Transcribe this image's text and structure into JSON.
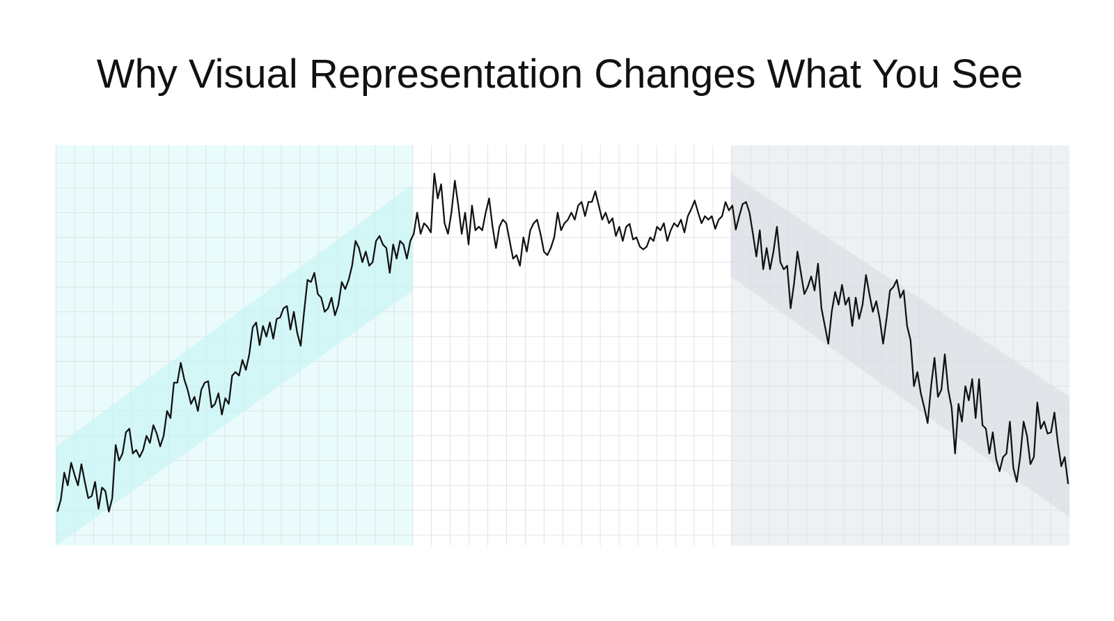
{
  "chart_data": {
    "type": "line",
    "title": "Why Visual Representation Changes What You See",
    "color": "#111111",
    "ylim": [
      0,
      565
    ],
    "values": [
      48,
      65,
      103,
      85,
      117,
      100,
      85,
      115,
      90,
      67,
      70,
      90,
      52,
      82,
      77,
      48,
      67,
      142,
      120,
      130,
      160,
      165,
      130,
      135,
      125,
      135,
      155,
      145,
      170,
      158,
      140,
      155,
      190,
      180,
      230,
      230,
      258,
      235,
      220,
      200,
      210,
      190,
      220,
      230,
      232,
      195,
      200,
      215,
      185,
      208,
      200,
      240,
      245,
      240,
      262,
      248,
      270,
      308,
      315,
      283,
      310,
      295,
      315,
      292,
      320,
      322,
      335,
      338,
      305,
      330,
      300,
      282,
      330,
      375,
      372,
      385,
      355,
      350,
      330,
      335,
      350,
      325,
      340,
      372,
      362,
      375,
      395,
      430,
      420,
      400,
      415,
      395,
      400,
      430,
      437,
      425,
      420,
      385,
      425,
      405,
      430,
      425,
      405,
      430,
      440,
      470,
      440,
      455,
      450,
      442,
      525,
      490,
      510,
      455,
      440,
      470,
      515,
      480,
      440,
      470,
      425,
      480,
      445,
      450,
      445,
      470,
      490,
      450,
      420,
      450,
      460,
      455,
      430,
      405,
      410,
      395,
      435,
      415,
      445,
      455,
      460,
      440,
      415,
      410,
      420,
      435,
      470,
      445,
      455,
      460,
      470,
      460,
      480,
      485,
      465,
      485,
      485,
      500,
      480,
      460,
      470,
      455,
      462,
      437,
      450,
      430,
      450,
      454,
      432,
      435,
      422,
      418,
      422,
      435,
      430,
      450,
      445,
      455,
      430,
      445,
      455,
      450,
      460,
      442,
      465,
      475,
      487,
      470,
      455,
      465,
      460,
      465,
      447,
      460,
      465,
      485,
      473,
      480,
      446,
      465,
      482,
      485,
      470,
      440,
      408,
      445,
      390,
      420,
      390,
      415,
      450,
      400,
      390,
      395,
      335,
      370,
      415,
      385,
      355,
      365,
      380,
      360,
      398,
      335,
      310,
      285,
      330,
      358,
      340,
      368,
      340,
      350,
      310,
      350,
      320,
      340,
      382,
      355,
      330,
      345,
      320,
      285,
      320,
      360,
      365,
      375,
      350,
      360,
      310,
      290,
      225,
      245,
      215,
      195,
      173,
      225,
      265,
      210,
      220,
      270,
      220,
      195,
      130,
      200,
      175,
      225,
      205,
      235,
      180,
      235,
      170,
      165,
      130,
      160,
      122,
      105,
      125,
      130,
      175,
      110,
      90,
      125,
      175,
      155,
      115,
      125,
      202,
      165,
      175,
      158,
      160,
      188,
      145,
      112,
      125,
      87
    ]
  }
}
